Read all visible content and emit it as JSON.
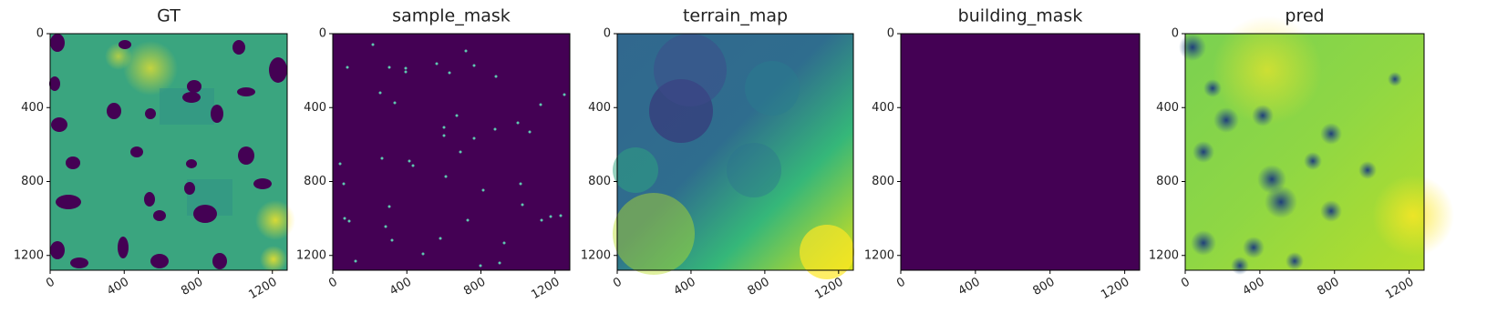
{
  "chart_data": [
    {
      "type": "image",
      "title": "GT",
      "xlim": [
        0,
        1280
      ],
      "ylim": [
        1280,
        0
      ],
      "xticks": [
        0,
        400,
        800,
        1200
      ],
      "yticks": [
        0,
        400,
        800,
        1200
      ]
    },
    {
      "type": "image",
      "title": "sample_mask",
      "xlim": [
        0,
        1280
      ],
      "ylim": [
        1280,
        0
      ],
      "xticks": [
        0,
        400,
        800,
        1200
      ],
      "yticks": [
        0,
        400,
        800,
        1200
      ]
    },
    {
      "type": "image",
      "title": "terrain_map",
      "xlim": [
        0,
        1280
      ],
      "ylim": [
        1280,
        0
      ],
      "xticks": [
        0,
        400,
        800,
        1200
      ],
      "yticks": [
        0,
        400,
        800,
        1200
      ]
    },
    {
      "type": "image",
      "title": "building_mask",
      "xlim": [
        0,
        1280
      ],
      "ylim": [
        1280,
        0
      ],
      "xticks": [
        0,
        400,
        800,
        1200
      ],
      "yticks": [
        0,
        400,
        800,
        1200
      ]
    },
    {
      "type": "image",
      "title": "pred",
      "xlim": [
        0,
        1280
      ],
      "ylim": [
        1280,
        0
      ],
      "xticks": [
        0,
        400,
        800,
        1200
      ],
      "yticks": [
        0,
        400,
        800,
        1200
      ]
    }
  ]
}
